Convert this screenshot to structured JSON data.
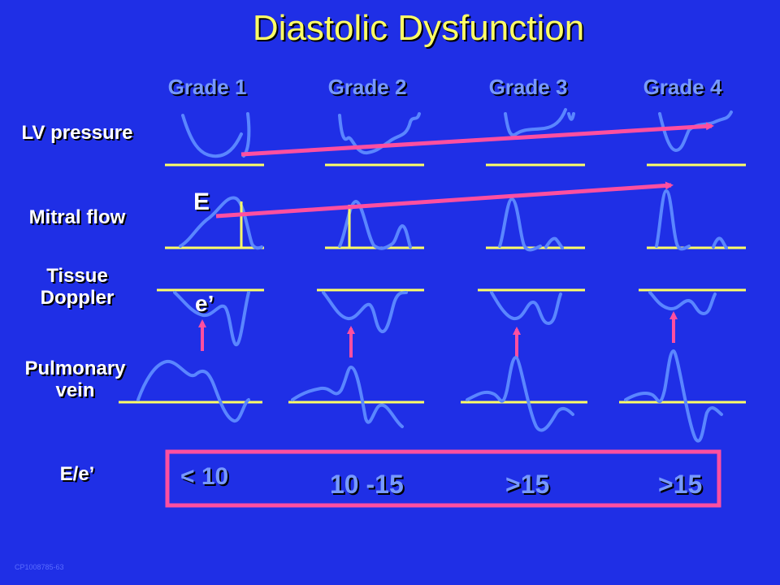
{
  "title": "Diastolic Dysfunction",
  "grades": [
    "Grade 1",
    "Grade 2",
    "Grade 3",
    "Grade 4"
  ],
  "rows": {
    "lv_pressure": "LV pressure",
    "mitral_flow": "Mitral flow",
    "tissue_doppler": "Tissue Doppler",
    "pulmonary_vein": "Pulmonary vein",
    "ratio": "E/e’"
  },
  "labels": {
    "E": "E",
    "e_prime": "e’"
  },
  "ratio_values": [
    "< 10",
    "10 -15",
    ">15",
    ">15"
  ],
  "footer_code": "CP1008785-63",
  "colors": {
    "background": "#1f2fe6",
    "title": "#ffff66",
    "grade_label": "#7799ff",
    "waveform": "#5a86ff",
    "baseline": "#ffff66",
    "arrow": "#ff4fa0",
    "box": "#ff4fa0"
  }
}
